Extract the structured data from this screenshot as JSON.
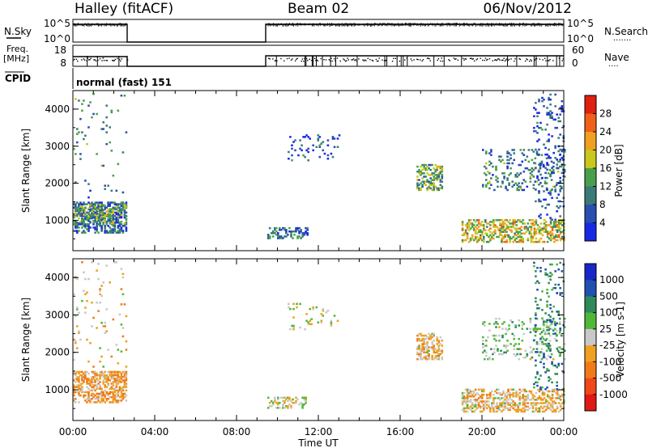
{
  "header": {
    "station": "Halley (fitACF)",
    "beam": "Beam 02",
    "date": "06/Nov/2012"
  },
  "top_panels": {
    "nsky_label": "N.Sky",
    "nsky_ticks": [
      "10^5",
      "10^0"
    ],
    "nsearch_label": "N.Search",
    "nsearch_ticks": [
      "10^5",
      "10^0"
    ],
    "freq_label_line1": "Freq.",
    "freq_label_line2": "[MHz]",
    "freq_ticks": [
      "18",
      "8"
    ],
    "nave_label": "Nave",
    "nave_ticks": [
      "60",
      "0"
    ],
    "cpid_label": "CPID",
    "cpid_value": "normal (fast) 151"
  },
  "x_axis": {
    "label": "Time UT",
    "ticks": [
      "00:00",
      "04:00",
      "08:00",
      "12:00",
      "16:00",
      "20:00",
      "00:00"
    ],
    "range_hours": [
      0,
      24
    ]
  },
  "colors": {
    "power": [
      "#1a28e6",
      "#2a4fb0",
      "#3a7a78",
      "#4aa04a",
      "#c8c81e",
      "#f0a020",
      "#f06018",
      "#e02010"
    ],
    "velocity": [
      "#e01818",
      "#f04818",
      "#f07a18",
      "#f0a020",
      "#c8c8c8",
      "#50b838",
      "#2e8a5a",
      "#2050b0",
      "#1828c8"
    ]
  },
  "chart_data": [
    {
      "type": "heatmap",
      "panel": "power",
      "xlabel": "",
      "ylabel": "Slant Range [km]",
      "ylim": [
        180,
        4500
      ],
      "yticks": [
        "1000",
        "2000",
        "3000",
        "4000"
      ],
      "colorbar": {
        "label": "Power [dB]",
        "ticks": [
          "28",
          "24",
          "20",
          "16",
          "12",
          "8",
          "4"
        ],
        "range": [
          0,
          32
        ]
      },
      "clusters": [
        {
          "t0": 0.0,
          "t1": 2.6,
          "r0": 650,
          "r1": 1500,
          "value": 8,
          "density": 0.55
        },
        {
          "t0": 0.0,
          "t1": 2.6,
          "r0": 900,
          "r1": 1400,
          "value": 14,
          "density": 0.3
        },
        {
          "t0": 0.0,
          "t1": 2.6,
          "r0": 1600,
          "r1": 4400,
          "value": 10,
          "density": 0.03
        },
        {
          "t0": 9.5,
          "t1": 11.5,
          "r0": 500,
          "r1": 800,
          "value": 8,
          "density": 0.35
        },
        {
          "t0": 10.5,
          "t1": 13.0,
          "r0": 2600,
          "r1": 3300,
          "value": 6,
          "density": 0.08
        },
        {
          "t0": 16.8,
          "t1": 18.0,
          "r0": 1800,
          "r1": 2500,
          "value": 14,
          "density": 0.5
        },
        {
          "t0": 19.0,
          "t1": 24.0,
          "r0": 400,
          "r1": 1000,
          "value": 18,
          "density": 0.45
        },
        {
          "t0": 20.0,
          "t1": 24.0,
          "r0": 1800,
          "r1": 2900,
          "value": 10,
          "density": 0.15
        },
        {
          "t0": 22.5,
          "t1": 24.0,
          "r0": 1000,
          "r1": 4400,
          "value": 6,
          "density": 0.12
        }
      ]
    },
    {
      "type": "heatmap",
      "panel": "velocity",
      "xlabel": "Time UT",
      "ylabel": "Slant Range [km]",
      "ylim": [
        180,
        4500
      ],
      "yticks": [
        "1000",
        "2000",
        "3000",
        "4000"
      ],
      "colorbar": {
        "label": "Velocity [m s-1]",
        "ticks": [
          "1000",
          "500",
          "100",
          "25",
          "-25",
          "-100",
          "-500",
          "-1000"
        ],
        "range": [
          -1200,
          1200
        ]
      },
      "clusters": [
        {
          "t0": 0.0,
          "t1": 2.6,
          "r0": 650,
          "r1": 1500,
          "value": -300,
          "density": 0.55
        },
        {
          "t0": 0.0,
          "t1": 2.6,
          "r0": 1600,
          "r1": 4400,
          "value": -150,
          "density": 0.03
        },
        {
          "t0": 9.5,
          "t1": 11.5,
          "r0": 500,
          "r1": 800,
          "value": 0,
          "density": 0.35
        },
        {
          "t0": 10.5,
          "t1": 13.0,
          "r0": 2600,
          "r1": 3300,
          "value": 0,
          "density": 0.06
        },
        {
          "t0": 16.8,
          "t1": 18.0,
          "r0": 1800,
          "r1": 2500,
          "value": -200,
          "density": 0.5
        },
        {
          "t0": 19.0,
          "t1": 24.0,
          "r0": 400,
          "r1": 1000,
          "value": -150,
          "density": 0.45
        },
        {
          "t0": 20.0,
          "t1": 24.0,
          "r0": 1800,
          "r1": 2900,
          "value": 200,
          "density": 0.15
        },
        {
          "t0": 22.5,
          "t1": 24.0,
          "r0": 1000,
          "r1": 4400,
          "value": 600,
          "density": 0.1
        }
      ]
    }
  ]
}
